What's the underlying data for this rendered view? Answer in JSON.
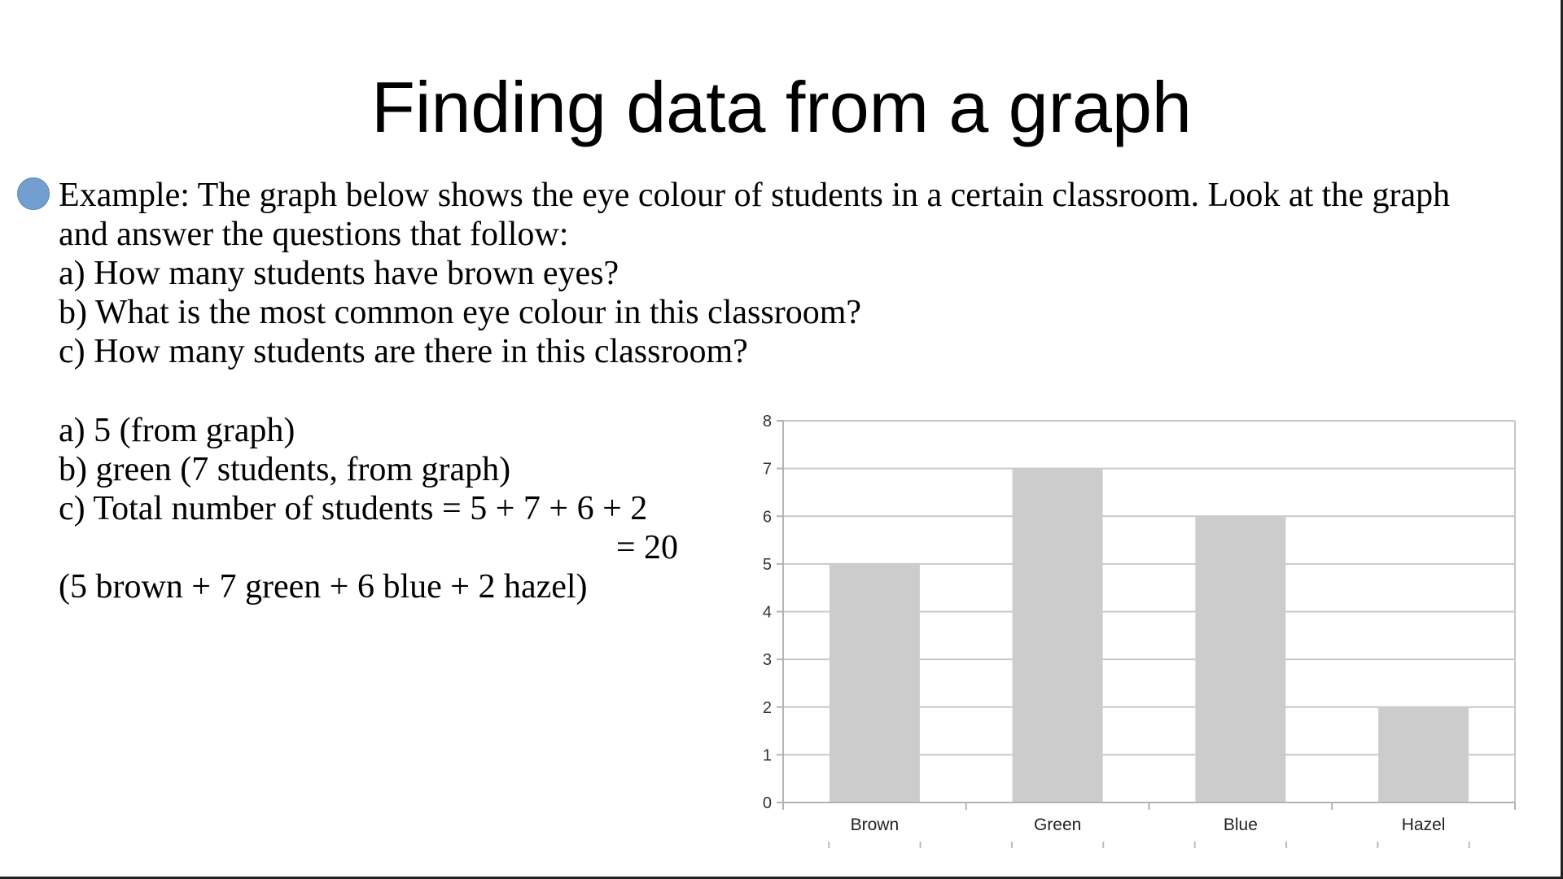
{
  "title": "Finding data from a graph",
  "bullet_icon": "bullet-circle",
  "accent_color": "#729fcf",
  "question": [
    "Example: The graph below shows the eye colour of students in a certain classroom. Look at the graph",
    "and answer the questions that follow:",
    "a) How many students have brown eyes?",
    "b) What is the most common eye colour in this classroom?",
    "c) How many students are there in this classroom?"
  ],
  "answers": [
    "a) 5 (from graph)",
    "b) green (7 students, from graph)",
    "c) Total number of students = 5 + 7 + 6 + 2",
    "= 20",
    "(5 brown + 7 green + 6 blue + 2 hazel)"
  ],
  "chart_data": {
    "type": "bar",
    "categories": [
      "Brown",
      "Green",
      "Blue",
      "Hazel"
    ],
    "values": [
      5,
      7,
      6,
      2
    ],
    "ylim": [
      0,
      8
    ],
    "yticks": [
      "0",
      "1",
      "2",
      "3",
      "4",
      "5",
      "6",
      "7",
      "8"
    ],
    "grid": true,
    "bar_color": "#cccccc",
    "legend": "none"
  }
}
